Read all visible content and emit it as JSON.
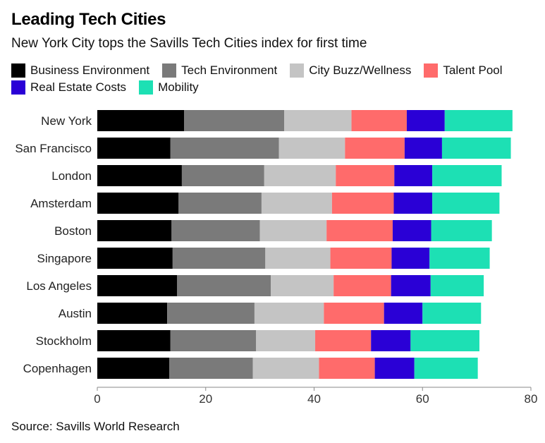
{
  "title": "Leading Tech Cities",
  "subtitle": "New York City tops the Savills Tech Cities index for first time",
  "source": "Source: Savills World Research",
  "chart_data": {
    "type": "bar",
    "orientation": "horizontal",
    "stacked": true,
    "categories": [
      "New York",
      "San Francisco",
      "London",
      "Amsterdam",
      "Boston",
      "Singapore",
      "Los Angeles",
      "Austin",
      "Stockholm",
      "Copenhagen"
    ],
    "series": [
      {
        "name": "Business Environment",
        "color": "#000000",
        "values": [
          16.0,
          13.5,
          15.6,
          15.0,
          13.7,
          13.9,
          14.7,
          12.9,
          13.5,
          13.3
        ]
      },
      {
        "name": "Tech Environment",
        "color": "#7a7a7a",
        "values": [
          18.5,
          20.0,
          15.2,
          15.3,
          16.3,
          17.1,
          17.3,
          16.1,
          15.8,
          15.4
        ]
      },
      {
        "name": "City Buzz/Wellness",
        "color": "#c4c4c4",
        "values": [
          12.4,
          12.2,
          13.2,
          13.0,
          12.3,
          12.0,
          11.6,
          12.8,
          10.9,
          12.2
        ]
      },
      {
        "name": "Talent Pool",
        "color": "#ff6b6b",
        "values": [
          10.2,
          11.0,
          10.8,
          11.4,
          12.2,
          11.3,
          10.6,
          11.1,
          10.3,
          10.3
        ]
      },
      {
        "name": "Real Estate Costs",
        "color": "#2a00d6",
        "values": [
          7.0,
          6.9,
          7.0,
          7.1,
          7.1,
          7.0,
          7.3,
          7.1,
          7.3,
          7.3
        ]
      },
      {
        "name": "Mobility",
        "color": "#1de0b4",
        "values": [
          12.5,
          12.7,
          12.8,
          12.4,
          11.2,
          11.1,
          9.8,
          10.8,
          12.7,
          11.7
        ]
      }
    ],
    "xlim": [
      0,
      80
    ],
    "xticks": [
      0,
      20,
      40,
      60,
      80
    ],
    "xlabel": "",
    "ylabel": "",
    "grid": false,
    "legend_position": "top"
  }
}
